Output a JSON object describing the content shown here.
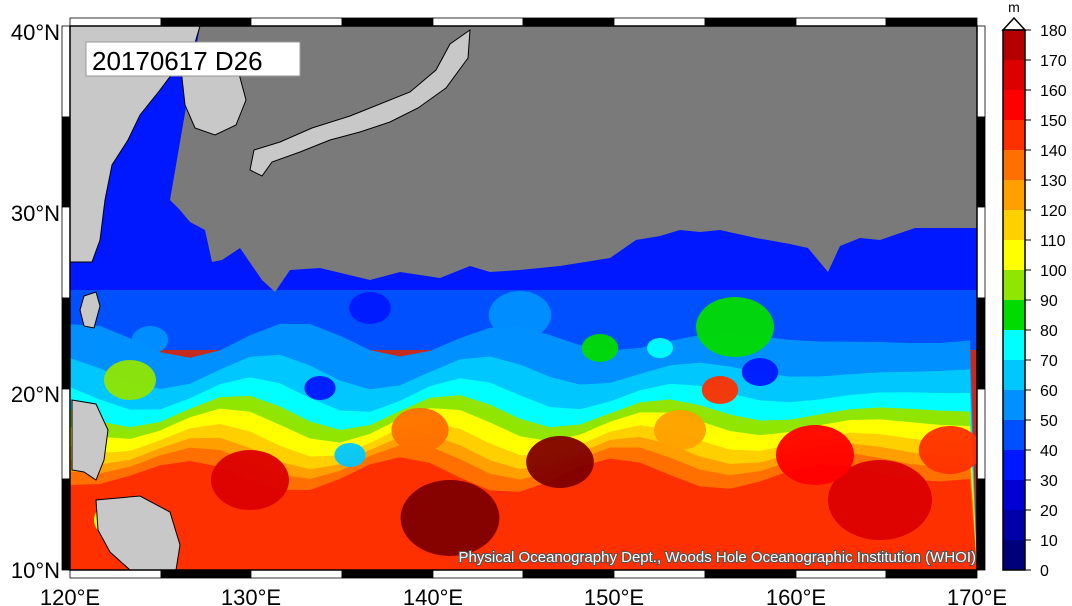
{
  "title": "20170617 D26",
  "credit": "Physical Oceanography Dept., Woods Hole Oceanographic Institution (WHOI)",
  "x_ticks": [
    "120°E",
    "130°E",
    "140°E",
    "150°E",
    "160°E",
    "170°E"
  ],
  "y_ticks": [
    "40°N",
    "30°N",
    "20°N",
    "10°N"
  ],
  "colorbar": {
    "unit": "m",
    "ticks": [
      "0",
      "10",
      "20",
      "30",
      "40",
      "50",
      "60",
      "70",
      "80",
      "90",
      "100",
      "110",
      "120",
      "130",
      "140",
      "150",
      "160",
      "170",
      "180"
    ],
    "colors": [
      "#00007a",
      "#0000a8",
      "#0000d2",
      "#0018ff",
      "#0050ff",
      "#0090ff",
      "#00c8ff",
      "#00ffff",
      "#00dc00",
      "#90e600",
      "#ffff00",
      "#ffd000",
      "#ffa000",
      "#ff7000",
      "#ff3000",
      "#ff0000",
      "#dc0000",
      "#b40000",
      "#800000",
      "#500000"
    ]
  },
  "map_colors": {
    "land": "#c8c8c8",
    "masked": "#7a7a7a"
  },
  "chart_data": {
    "type": "heatmap",
    "variable": "D26",
    "unit": "m",
    "date": "20170617",
    "x_range": [
      120,
      170
    ],
    "y_range": [
      10,
      40
    ],
    "color_range": [
      0,
      180
    ],
    "color_step": 10
  }
}
